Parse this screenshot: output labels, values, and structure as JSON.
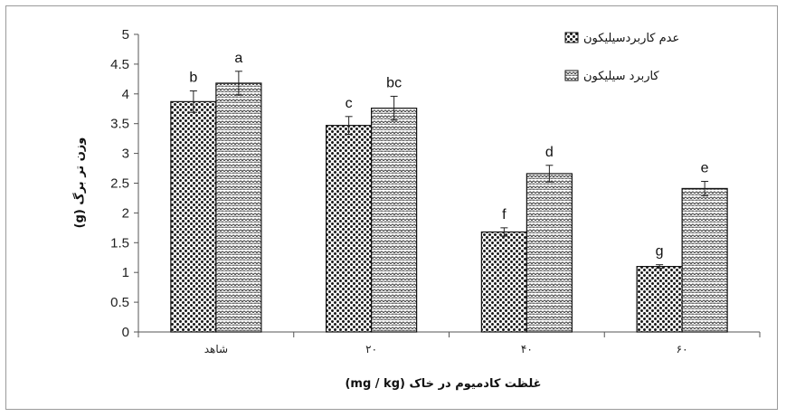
{
  "chart_data": {
    "type": "bar",
    "categories": [
      "شاهد",
      "۲۰",
      "۴۰",
      "۶۰"
    ],
    "series": [
      {
        "name": "عدم کاربردسیلیکون",
        "values": [
          3.87,
          3.47,
          1.68,
          1.1
        ],
        "errors": [
          0.18,
          0.15,
          0.07,
          0.03
        ],
        "letters": [
          "b",
          "c",
          "f",
          "g"
        ]
      },
      {
        "name": "کاربرد سیلیکون",
        "values": [
          4.18,
          3.76,
          2.66,
          2.41
        ],
        "errors": [
          0.2,
          0.2,
          0.14,
          0.12
        ],
        "letters": [
          "a",
          "bc",
          "d",
          "e"
        ]
      }
    ],
    "xlabel": "غلظت کادمیوم در خاک (mg / kg)",
    "ylabel": "وزن تر برگ (g)",
    "ylim": [
      0,
      5
    ],
    "yticks": [
      "0",
      "0.5",
      "1",
      "1.5",
      "2",
      "2.5",
      "3",
      "3.5",
      "4",
      "4.5",
      "5"
    ],
    "grid": false,
    "legend": "top-right",
    "colors": {
      "series0": "#1a1a1a",
      "series1": "#3a3a3a",
      "axis": "#555555"
    }
  }
}
